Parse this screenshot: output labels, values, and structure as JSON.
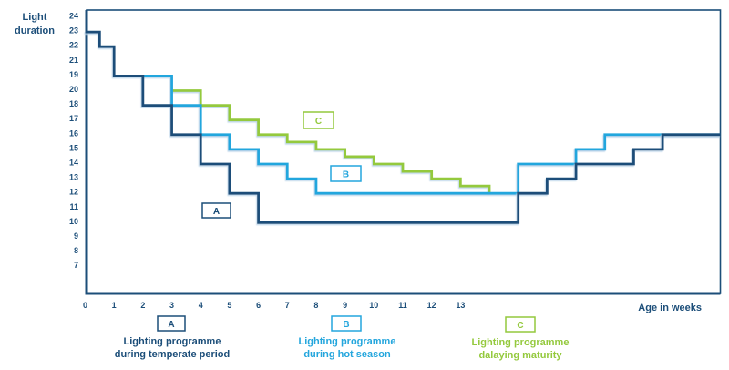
{
  "colors": {
    "navy": "#1c4e79",
    "cyan": "#24a6dd",
    "green": "#94c93d",
    "shadow": "#b9d3e8"
  },
  "y_axis": {
    "title_line1": "Light",
    "title_line2": "duration",
    "ticks": [
      "24",
      "23",
      "22",
      "21",
      "19",
      "20",
      "18",
      "17",
      "16",
      "15",
      "14",
      "13",
      "12",
      "11",
      "10",
      "9",
      "8",
      "7"
    ]
  },
  "x_axis": {
    "label": "Age in weeks",
    "ticks": [
      "0",
      "1",
      "2",
      "3",
      "4",
      "5",
      "6",
      "7",
      "8",
      "9",
      "10",
      "11",
      "12",
      "13"
    ]
  },
  "chart_data": {
    "type": "line",
    "subtype": "step",
    "title": "",
    "xlabel": "Age in weeks",
    "ylabel": "Light duration",
    "x_range": [
      0,
      22
    ],
    "grid": false,
    "y_tick_note": "printed top-to-bottom: 24,23,22,21,19,20,18,17,16,15,14,13,12,11,10,9,8,7 (19 and 20 swapped in source image)",
    "series": [
      {
        "name": "A",
        "color_key": "navy",
        "steps": [
          [
            0,
            23
          ],
          [
            0.5,
            22
          ],
          [
            1,
            20
          ],
          [
            2,
            18
          ],
          [
            3,
            16
          ],
          [
            4,
            14
          ],
          [
            5,
            12
          ],
          [
            6,
            10
          ],
          [
            15,
            12
          ],
          [
            16,
            13
          ],
          [
            17,
            14
          ],
          [
            19,
            15
          ],
          [
            20,
            16
          ]
        ],
        "end_week": 22
      },
      {
        "name": "B",
        "color_key": "cyan",
        "steps": [
          [
            2,
            20
          ],
          [
            3,
            18
          ],
          [
            4,
            16
          ],
          [
            5,
            15
          ],
          [
            6,
            14
          ],
          [
            7,
            13
          ],
          [
            8,
            12
          ],
          [
            15,
            14
          ],
          [
            17,
            15
          ],
          [
            18,
            16
          ]
        ],
        "end_week": 22
      },
      {
        "name": "C",
        "color_key": "green",
        "steps": [
          [
            3,
            19
          ],
          [
            4,
            18
          ],
          [
            5,
            17
          ],
          [
            6,
            16
          ],
          [
            7,
            15.5
          ],
          [
            8,
            15
          ],
          [
            9,
            14.5
          ],
          [
            10,
            14
          ],
          [
            11,
            13.5
          ],
          [
            12,
            13
          ],
          [
            13,
            12.5
          ],
          [
            14,
            12
          ]
        ],
        "end_week": 14
      }
    ]
  },
  "inline_labels": [
    {
      "letter": "A"
    },
    {
      "letter": "B"
    },
    {
      "letter": "C"
    }
  ],
  "legend": [
    {
      "letter": "A",
      "line1": "Lighting programme",
      "line2": "during temperate period",
      "color_key": "navy"
    },
    {
      "letter": "B",
      "line1": "Lighting programme",
      "line2": "during hot season",
      "color_key": "cyan"
    },
    {
      "letter": "C",
      "line1": "Lighting programme",
      "line2": "dalaying maturity",
      "color_key": "green"
    }
  ]
}
